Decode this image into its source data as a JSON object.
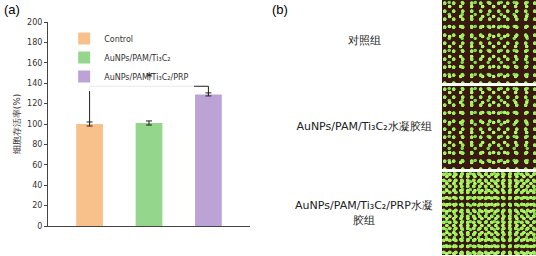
{
  "chart_data": {
    "type": "bar",
    "panel": "(a)",
    "categories": [
      null,
      null,
      null
    ],
    "y_label": "细胞存活率(%)",
    "ylim": [
      0,
      200
    ],
    "yticks": [
      0,
      20,
      40,
      60,
      80,
      100,
      120,
      140,
      160,
      180,
      200
    ],
    "tick_labels": "y",
    "grid": false,
    "legend": "top-left",
    "series": [
      {
        "name": "Control",
        "color": "#f8c18c",
        "values": [
          100,
          null,
          null
        ],
        "error": [
          2,
          null,
          null
        ]
      },
      {
        "name": "AuNPs/PAM/Ti₃C₂",
        "color": "#93d68c",
        "values": [
          null,
          101,
          null
        ],
        "error": [
          null,
          2,
          null
        ]
      },
      {
        "name": "AuNPs/PAM/Ti₃C₂/PRP",
        "color": "#bba3d6",
        "values": [
          null,
          null,
          129
        ],
        "error": [
          null,
          null,
          1.5
        ]
      }
    ],
    "annotations": [
      {
        "text": "*",
        "from": 0,
        "to": 2,
        "y": 137
      }
    ]
  },
  "panel_b": {
    "panel": "(b)",
    "images": [
      {
        "label": "对照组"
      },
      {
        "label": "AuNPs/PAM/Ti₃C₂水凝胶组"
      },
      {
        "label": "AuNPs/PAM/Ti₃C₂/PRP水凝胶组"
      }
    ]
  }
}
